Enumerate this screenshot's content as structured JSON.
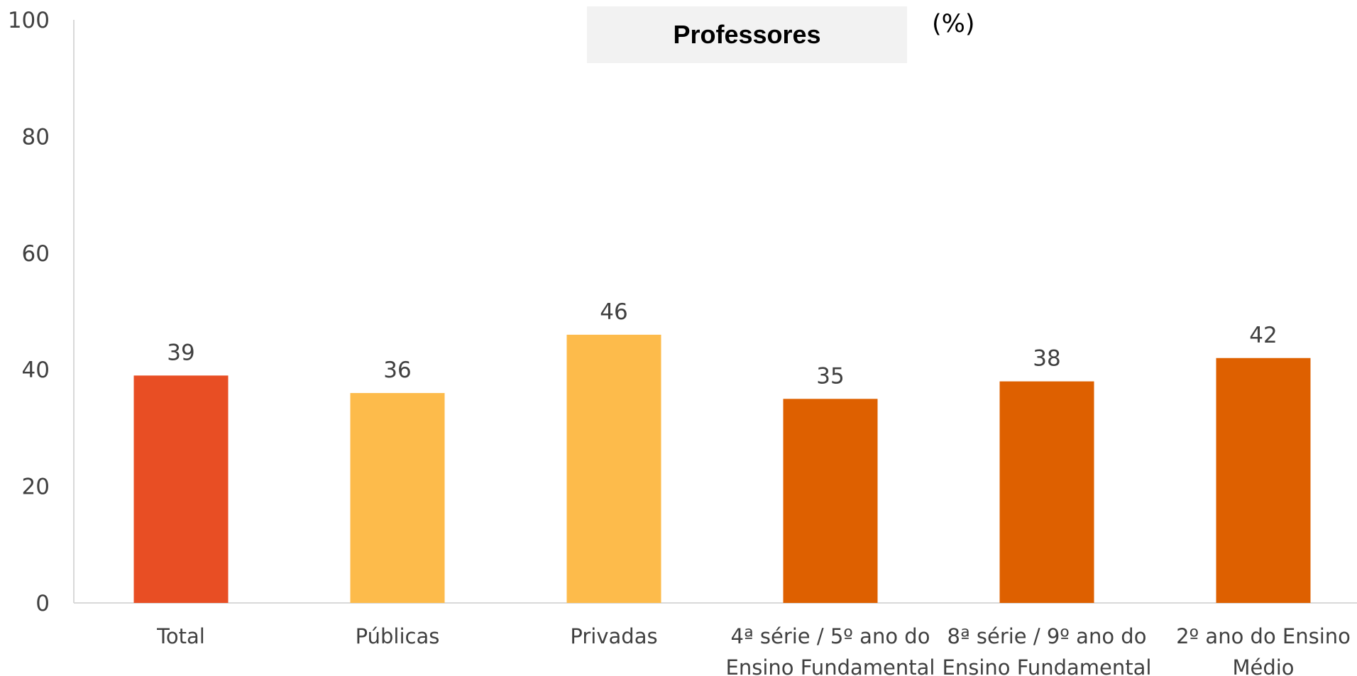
{
  "chart_data": {
    "type": "bar",
    "title": "Professores",
    "unit": "(%)",
    "categories": [
      [
        "Total"
      ],
      [
        "Públicas"
      ],
      [
        "Privadas"
      ],
      [
        "4ª série / 5º  ano do",
        "Ensino Fundamental"
      ],
      [
        "8ª série / 9º  ano do",
        "Ensino Fundamental"
      ],
      [
        "2º ano do Ensino",
        "Médio"
      ]
    ],
    "values": [
      39,
      36,
      46,
      35,
      38,
      42
    ],
    "colors": [
      "#e84e24",
      "#fdbb4b",
      "#fdbb4b",
      "#de6000",
      "#de6000",
      "#de6000"
    ],
    "ylim": [
      0,
      100
    ],
    "yticks": [
      0,
      20,
      40,
      60,
      80,
      100
    ],
    "data_labels": true,
    "grid": false,
    "legend": "none"
  }
}
